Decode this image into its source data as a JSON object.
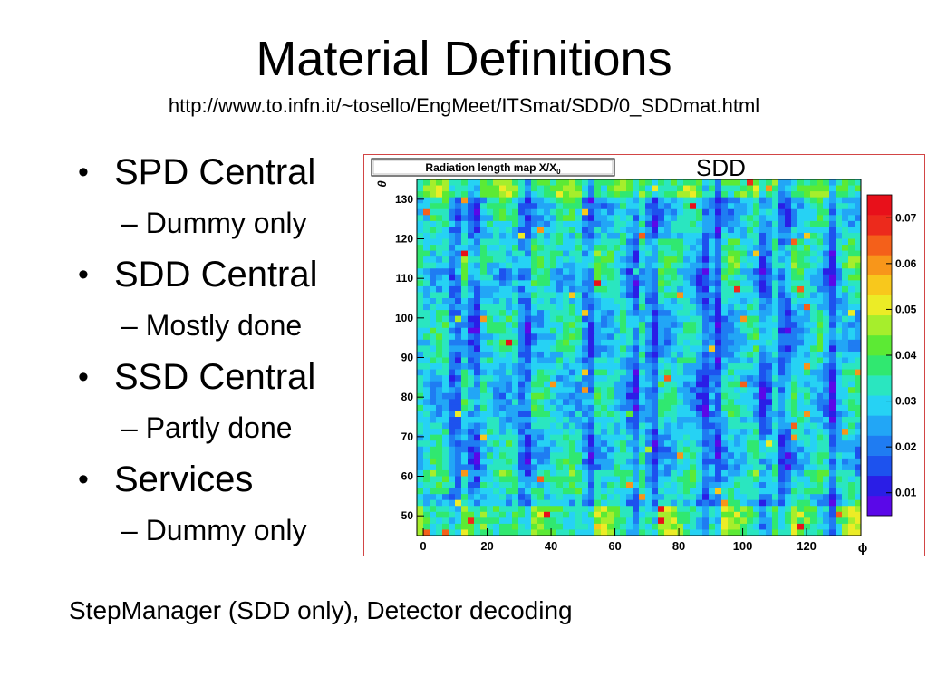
{
  "slide": {
    "title": "Material Definitions",
    "url": "http://www.to.infn.it/~tosello/EngMeet/ITSmat/SDD/0_SDDmat.html",
    "bullets": [
      {
        "label": "SPD Central",
        "sub": "– Dummy only"
      },
      {
        "label": "SDD Central",
        "sub": "– Mostly done"
      },
      {
        "label": "SSD Central",
        "sub": "– Partly done"
      },
      {
        "label": "Services",
        "sub": "– Dummy only"
      }
    ],
    "bullet_glyph": "•",
    "plot_label": "SDD",
    "footer": "StepManager (SDD only), Detector decoding"
  },
  "chart_data": {
    "type": "heatmap",
    "title": "Radiation length map X/X",
    "title_subscript": "0",
    "xlabel": "ϕ",
    "ylabel": "θ",
    "xlim": [
      -2,
      137
    ],
    "ylim": [
      45,
      135
    ],
    "x_ticks": [
      0,
      20,
      40,
      60,
      80,
      100,
      120
    ],
    "y_ticks": [
      50,
      60,
      70,
      80,
      90,
      100,
      110,
      120,
      130
    ],
    "colorbar": {
      "range": [
        0.005,
        0.075
      ],
      "ticks": [
        "0.07",
        "0.06",
        "0.05",
        "0.04",
        "0.03",
        "0.02",
        "0.01"
      ],
      "tick_values": [
        0.07,
        0.06,
        0.05,
        0.04,
        0.03,
        0.02,
        0.01
      ],
      "palette": [
        "#5a08e8",
        "#2a1ee6",
        "#1d52ee",
        "#1f7cf2",
        "#22a6f6",
        "#26d2f4",
        "#2ae6c0",
        "#30e870",
        "#5cea34",
        "#a6ee2c",
        "#ecec26",
        "#f8c81c",
        "#f8961a",
        "#f4601a",
        "#ec2a1c",
        "#e8101a"
      ]
    },
    "low_x_columns": [
      10,
      16,
      32,
      52,
      66,
      72,
      88,
      92,
      107,
      113,
      128
    ]
  }
}
